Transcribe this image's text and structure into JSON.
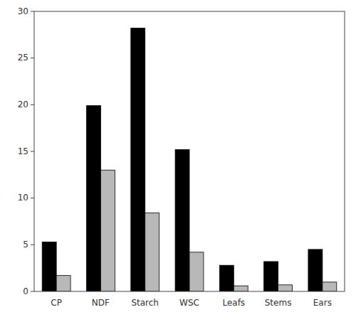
{
  "chart_data": {
    "type": "bar",
    "categories": [
      "CP",
      "NDF",
      "Starch",
      "WSC",
      "Leafs",
      "Stems",
      "Ears"
    ],
    "series": [
      {
        "color": "#000000",
        "values": [
          5.3,
          19.9,
          28.2,
          15.2,
          2.8,
          3.2,
          4.5
        ]
      },
      {
        "color": "#b8b8b8",
        "values": [
          1.7,
          13.0,
          8.4,
          4.2,
          0.6,
          0.7,
          1.0
        ]
      }
    ],
    "ylim": [
      0,
      30
    ],
    "yticks": [
      0,
      5,
      10,
      15,
      20,
      25,
      30
    ],
    "grid": false
  }
}
